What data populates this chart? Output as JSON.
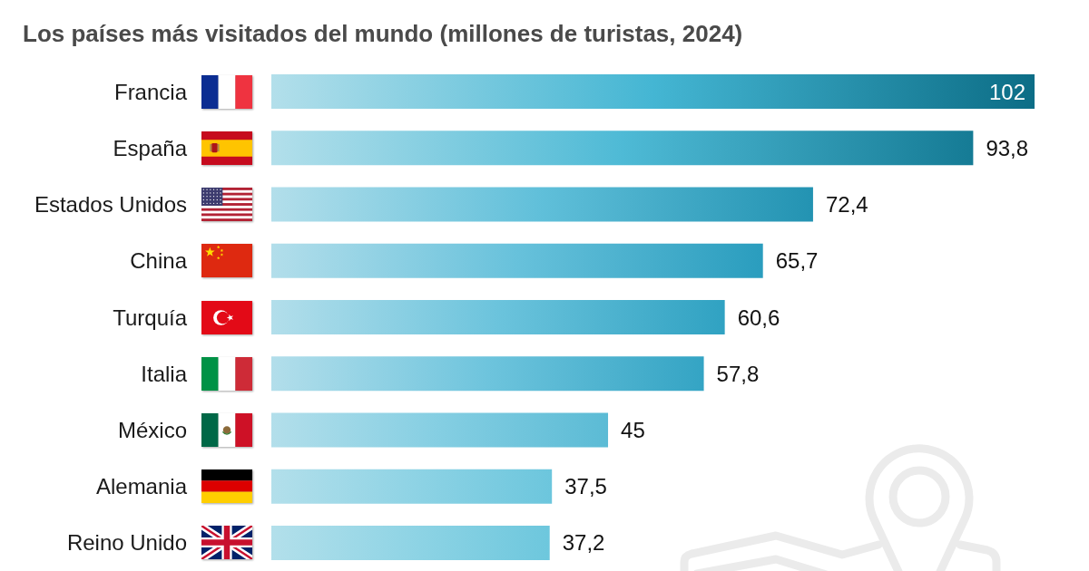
{
  "chart_data": {
    "type": "bar",
    "orientation": "horizontal",
    "title": "Los países más visitados del mundo (millones de turistas, 2024)",
    "categories": [
      "Francia",
      "España",
      "Estados Unidos",
      "China",
      "Turquía",
      "Italia",
      "México",
      "Alemania",
      "Reino Unido"
    ],
    "values": [
      102,
      93.8,
      72.4,
      65.7,
      60.6,
      57.8,
      45,
      37.5,
      37.2
    ],
    "colors": [
      "#0c6d86",
      "#157b95",
      "#2393b2",
      "#2a9dbe",
      "#30a2c2",
      "#34a4c4",
      "#5bbbd5",
      "#6cc6dd",
      "#6dc7dd"
    ],
    "value_labels": [
      "102",
      "93,8",
      "72,4",
      "65,7",
      "60,6",
      "57,8",
      "45",
      "37,5",
      "37,2"
    ]
  }
}
